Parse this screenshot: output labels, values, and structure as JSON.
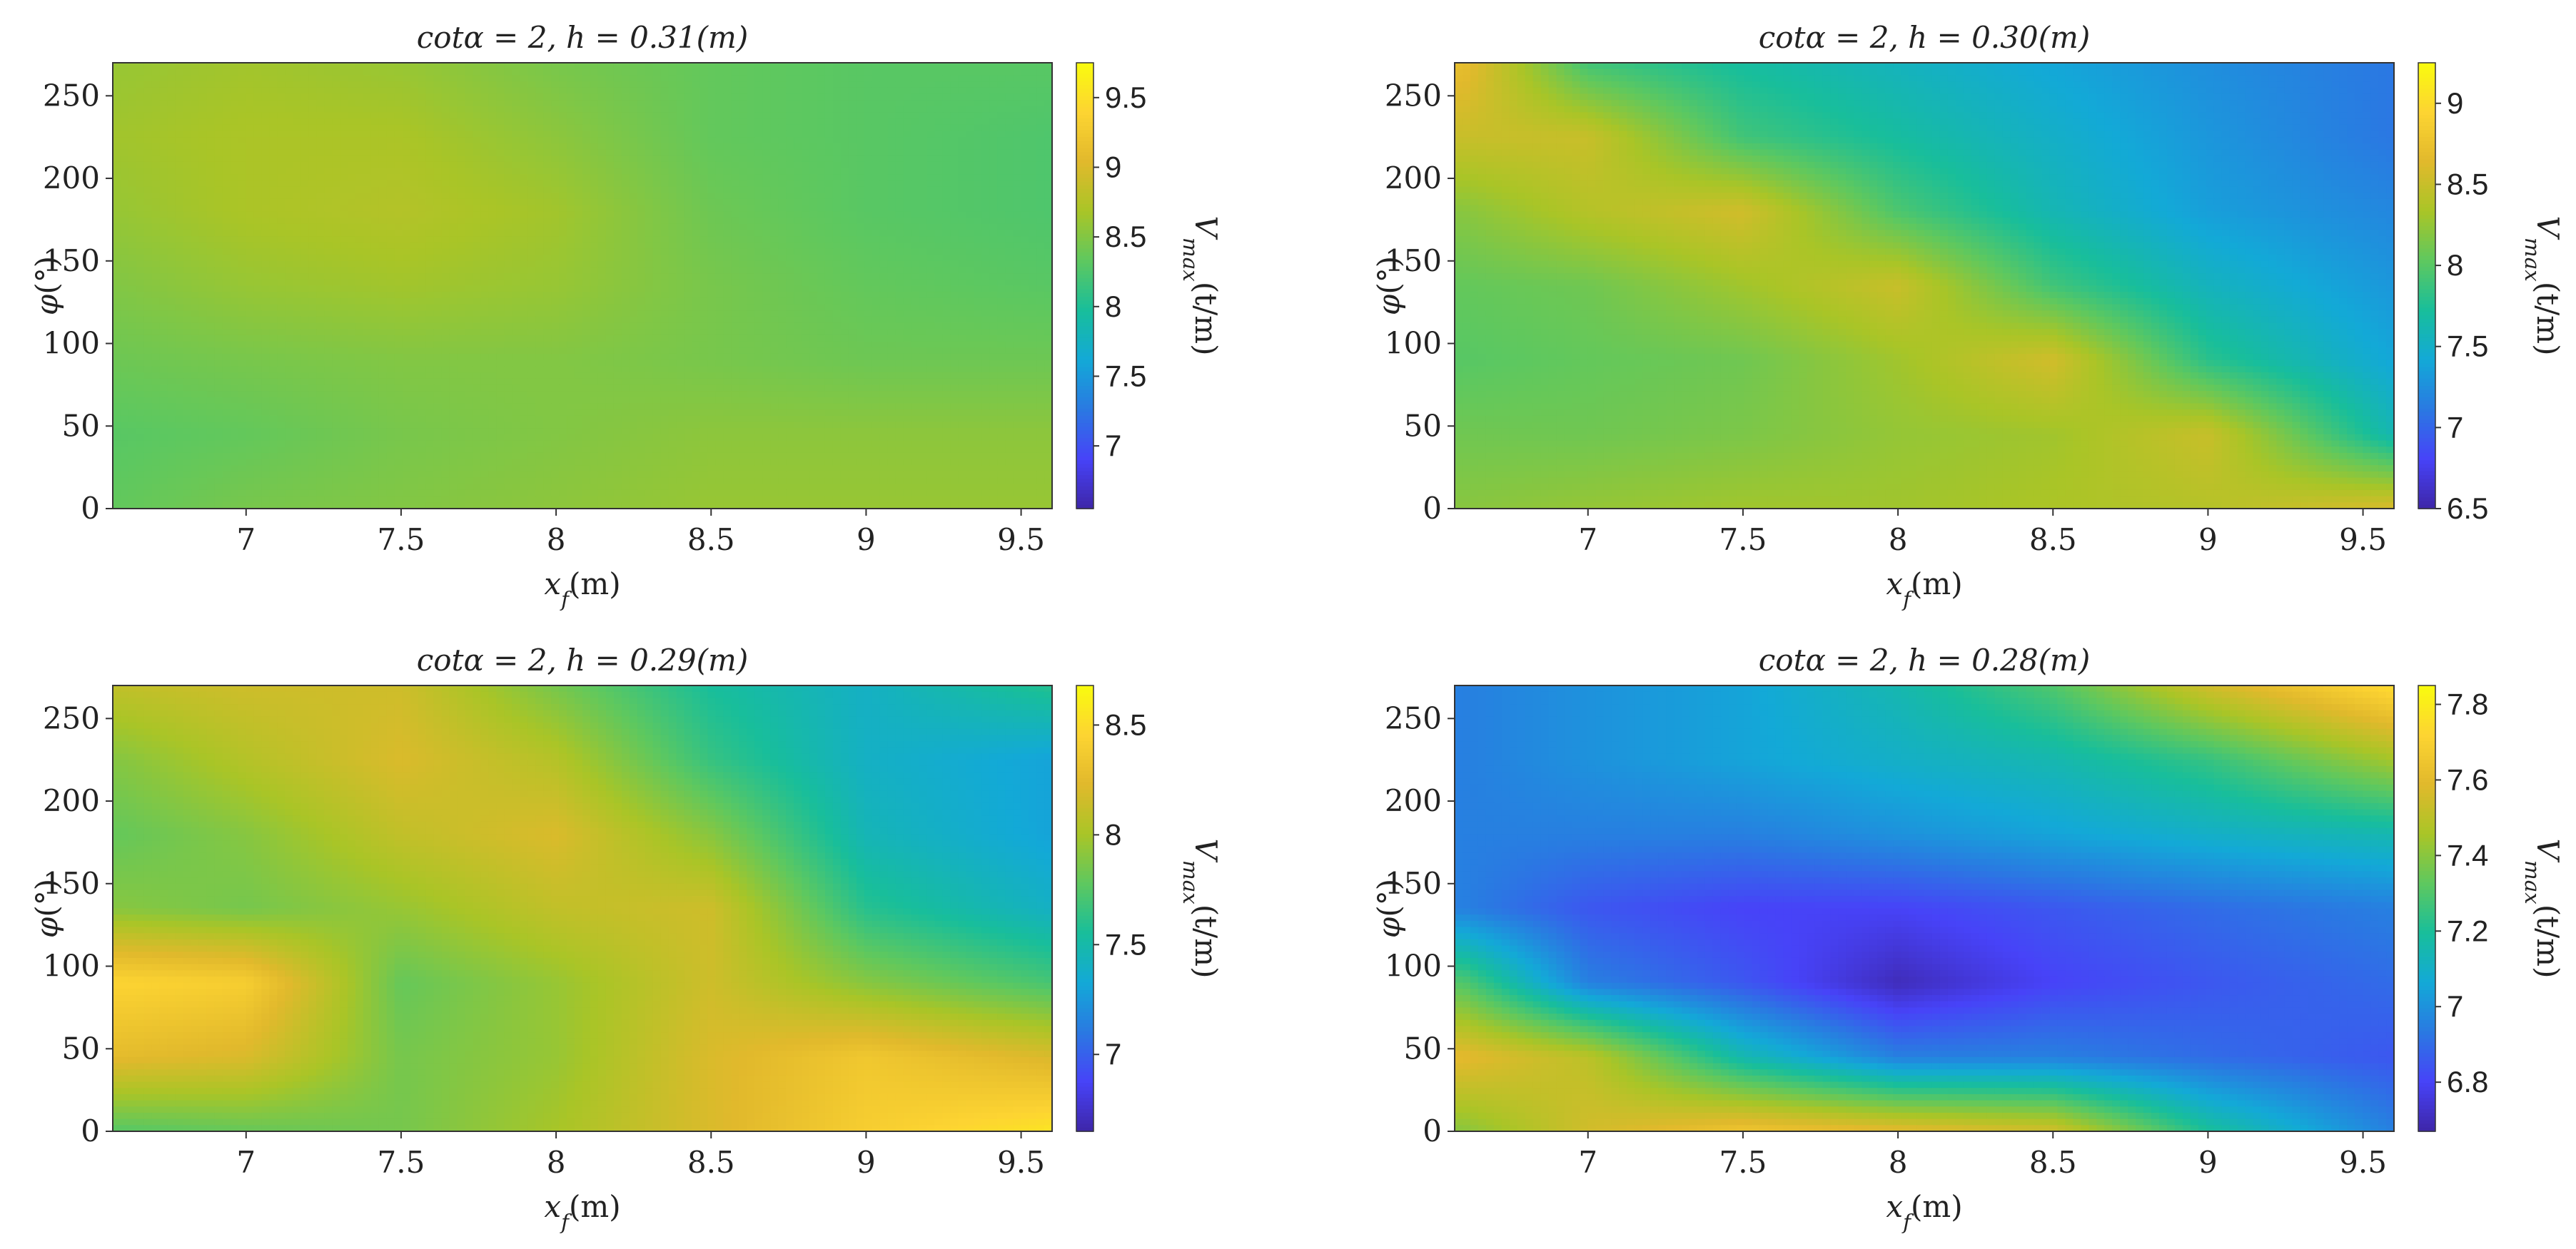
{
  "colormap": [
    "#3e26a8",
    "#4743f8",
    "#2a79e2",
    "#13a9d7",
    "#18be9b",
    "#5ec85f",
    "#a9c527",
    "#e1b92c",
    "#fdd432",
    "#f9fb0e"
  ],
  "chart_data": [
    {
      "type": "heatmap",
      "title": "cotα = 2, h = 0.31(m)",
      "xlabel": "x_f(m)",
      "ylabel": "φ(°)",
      "colorbar_label": "V_max(t/m)",
      "x": [
        6.6,
        7.0,
        7.5,
        8.0,
        8.5,
        9.0,
        9.6
      ],
      "y": [
        0,
        45,
        90,
        135,
        180,
        225,
        270
      ],
      "z": [
        [
          8.35,
          8.45,
          8.5,
          8.55,
          8.6,
          8.6,
          8.6
        ],
        [
          8.3,
          8.35,
          8.45,
          8.5,
          8.55,
          8.55,
          8.55
        ],
        [
          8.4,
          8.45,
          8.5,
          8.5,
          8.45,
          8.4,
          8.4
        ],
        [
          8.5,
          8.6,
          8.65,
          8.6,
          8.45,
          8.35,
          8.3
        ],
        [
          8.6,
          8.7,
          8.75,
          8.65,
          8.4,
          8.3,
          8.25
        ],
        [
          8.65,
          8.7,
          8.7,
          8.55,
          8.35,
          8.3,
          8.25
        ],
        [
          8.6,
          8.65,
          8.6,
          8.45,
          8.35,
          8.3,
          8.3
        ]
      ],
      "xlim": [
        6.57,
        9.6
      ],
      "ylim": [
        0,
        270
      ],
      "xticks": [
        7,
        7.5,
        8,
        8.5,
        9,
        9.5
      ],
      "yticks": [
        0,
        50,
        100,
        150,
        200,
        250
      ],
      "clim": [
        6.55,
        9.75
      ],
      "cticks": [
        7,
        7.5,
        8,
        8.5,
        9,
        9.5
      ]
    },
    {
      "type": "heatmap",
      "title": "cotα = 2, h = 0.30(m)",
      "xlabel": "x_f(m)",
      "ylabel": "φ(°)",
      "colorbar_label": "V_max(t/m)",
      "x": [
        6.6,
        7.0,
        7.5,
        8.0,
        8.5,
        9.0,
        9.6
      ],
      "y": [
        0,
        45,
        90,
        135,
        180,
        225,
        270
      ],
      "z": [
        [
          8.2,
          8.25,
          8.3,
          8.3,
          8.35,
          8.4,
          8.6
        ],
        [
          8.1,
          8.1,
          8.15,
          8.25,
          8.3,
          8.5,
          7.6
        ],
        [
          8.0,
          8.05,
          8.1,
          8.3,
          8.55,
          7.8,
          7.4
        ],
        [
          8.05,
          8.1,
          8.3,
          8.5,
          7.9,
          7.55,
          7.3
        ],
        [
          8.2,
          8.4,
          8.55,
          7.95,
          7.6,
          7.35,
          7.2
        ],
        [
          8.5,
          8.5,
          7.9,
          7.7,
          7.5,
          7.3,
          7.1
        ],
        [
          8.7,
          7.9,
          7.7,
          7.55,
          7.4,
          7.25,
          7.1
        ]
      ],
      "xlim": [
        6.57,
        9.6
      ],
      "ylim": [
        0,
        270
      ],
      "xticks": [
        7,
        7.5,
        8,
        8.5,
        9,
        9.5
      ],
      "yticks": [
        0,
        50,
        100,
        150,
        200,
        250
      ],
      "clim": [
        6.5,
        9.25
      ],
      "cticks": [
        6.5,
        7,
        7.5,
        8,
        8.5,
        9
      ]
    },
    {
      "type": "heatmap",
      "title": "cotα = 2, h = 0.29(m)",
      "xlabel": "x_f(m)",
      "ylabel": "φ(°)",
      "colorbar_label": "V_max(t/m)",
      "x": [
        6.6,
        7.0,
        7.5,
        8.0,
        8.5,
        9.0,
        9.6
      ],
      "y": [
        0,
        45,
        90,
        135,
        180,
        225,
        270
      ],
      "z": [
        [
          7.75,
          7.8,
          7.85,
          8.0,
          8.2,
          8.4,
          8.55
        ],
        [
          8.25,
          8.2,
          7.85,
          7.95,
          8.2,
          8.35,
          8.2
        ],
        [
          8.45,
          8.4,
          7.8,
          7.95,
          8.15,
          7.9,
          7.7
        ],
        [
          7.9,
          7.85,
          7.95,
          8.1,
          8.15,
          7.6,
          7.4
        ],
        [
          7.8,
          7.9,
          8.1,
          8.2,
          7.9,
          7.45,
          7.3
        ],
        [
          7.9,
          8.05,
          8.2,
          8.05,
          7.65,
          7.4,
          7.3
        ],
        [
          8.1,
          8.15,
          8.15,
          7.85,
          7.55,
          7.4,
          7.6
        ]
      ],
      "xlim": [
        6.57,
        9.6
      ],
      "ylim": [
        0,
        270
      ],
      "xticks": [
        7,
        7.5,
        8,
        8.5,
        9,
        9.5
      ],
      "yticks": [
        0,
        50,
        100,
        150,
        200,
        250
      ],
      "clim": [
        6.65,
        8.68
      ],
      "cticks": [
        7,
        7.5,
        8,
        8.5
      ]
    },
    {
      "type": "heatmap",
      "title": "cotα = 2, h = 0.28(m)",
      "xlabel": "x_f(m)",
      "ylabel": "φ(°)",
      "colorbar_label": "V_max(t/m)",
      "x": [
        6.6,
        7.0,
        7.5,
        8.0,
        8.5,
        9.0,
        9.6
      ],
      "y": [
        0,
        45,
        90,
        135,
        180,
        225,
        270
      ],
      "z": [
        [
          7.4,
          7.55,
          7.65,
          7.6,
          7.55,
          7.2,
          6.95
        ],
        [
          7.6,
          7.5,
          7.15,
          6.95,
          6.95,
          6.9,
          6.85
        ],
        [
          7.3,
          6.95,
          6.85,
          6.7,
          6.8,
          6.85,
          6.9
        ],
        [
          6.95,
          6.85,
          6.8,
          6.8,
          6.85,
          6.9,
          6.95
        ],
        [
          6.95,
          6.95,
          6.95,
          7.0,
          7.05,
          7.1,
          7.15
        ],
        [
          6.95,
          7.0,
          7.05,
          7.1,
          7.15,
          7.25,
          7.45
        ],
        [
          6.95,
          7.0,
          7.05,
          7.15,
          7.3,
          7.55,
          7.75
        ]
      ],
      "xlim": [
        6.57,
        9.6
      ],
      "ylim": [
        0,
        270
      ],
      "xticks": [
        7,
        7.5,
        8,
        8.5,
        9,
        9.5
      ],
      "yticks": [
        0,
        50,
        100,
        150,
        200,
        250
      ],
      "clim": [
        6.67,
        7.85
      ],
      "cticks": [
        6.8,
        7,
        7.2,
        7.4,
        7.6,
        7.8
      ]
    }
  ]
}
